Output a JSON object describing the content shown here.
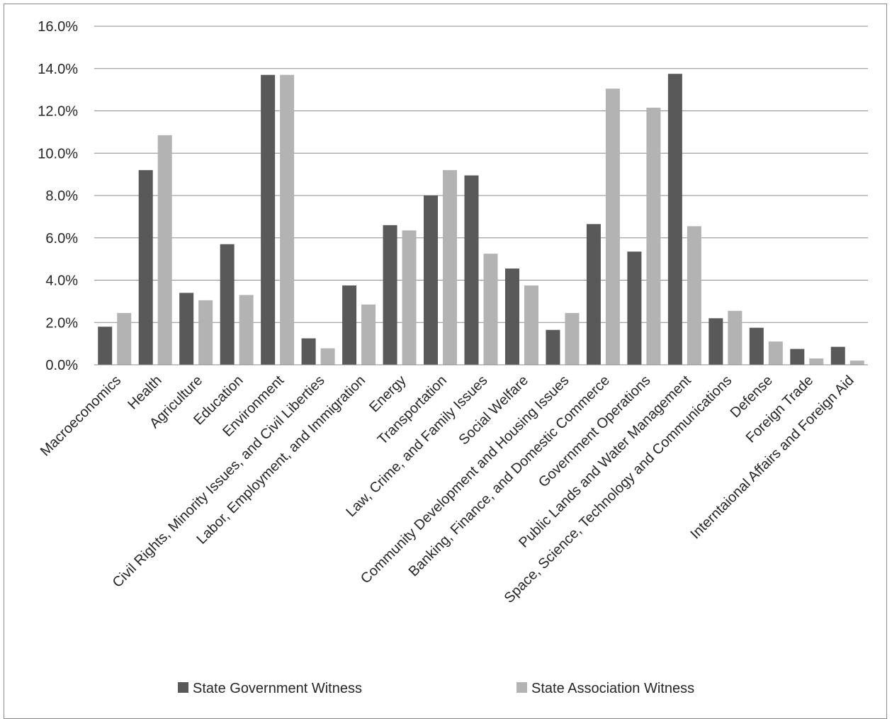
{
  "chart_data": {
    "type": "bar",
    "categories": [
      "Macroeconomics",
      "Health",
      "Agriculture",
      "Education",
      "Environment",
      "Civil Rights, Minority Issues, and Civil Liberties",
      "Labor, Employment, and Immigration",
      "Energy",
      "Transportation",
      "Law, Crime, and Family Issues",
      "Social Welfare",
      "Community Development and Housing Issues",
      "Banking, Finance, and Domestic Commerce",
      "Government Operations",
      "Public Lands and Water Management",
      "Space, Science, Technology and Communications",
      "Defense",
      "Foreign Trade",
      "Interntaional Affairs and Foreign Aid"
    ],
    "series": [
      {
        "name": "State Government Witness",
        "color": "#595959",
        "values": [
          1.8,
          9.2,
          3.4,
          5.7,
          13.7,
          1.25,
          3.75,
          6.6,
          8.0,
          8.95,
          4.55,
          1.65,
          6.65,
          5.35,
          13.75,
          2.2,
          1.75,
          0.75,
          0.85
        ]
      },
      {
        "name": "State Association Witness",
        "color": "#b3b3b3",
        "values": [
          2.45,
          10.85,
          3.05,
          3.3,
          13.7,
          0.78,
          2.85,
          6.35,
          9.2,
          5.25,
          3.75,
          2.45,
          13.05,
          12.15,
          6.55,
          2.55,
          1.1,
          0.3,
          0.2
        ]
      }
    ],
    "y_ticks": [
      "0.0%",
      "2.0%",
      "4.0%",
      "6.0%",
      "8.0%",
      "10.0%",
      "12.0%",
      "14.0%",
      "16.0%"
    ],
    "ylim": [
      0,
      16
    ],
    "grid": true,
    "legend": "bottom",
    "title": "",
    "xlabel": "",
    "ylabel": ""
  }
}
